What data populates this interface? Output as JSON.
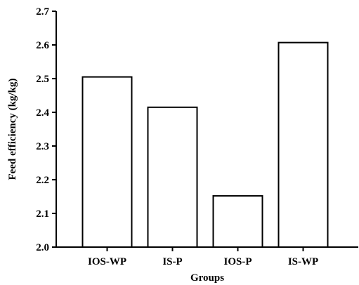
{
  "chart_data": {
    "type": "bar",
    "title": "",
    "xlabel": "Groups",
    "ylabel": "Feed efficiency (kg/kg)",
    "categories": [
      "IOS-WP",
      "IS-P",
      "IOS-P",
      "IS-WP"
    ],
    "values": [
      2.505,
      2.415,
      2.152,
      2.607
    ],
    "ylim": [
      2.0,
      2.7
    ],
    "yticks": [
      "2.0",
      "2.1",
      "2.2",
      "2.3",
      "2.4",
      "2.5",
      "2.6",
      "2.7"
    ],
    "grid": false,
    "legend": "none",
    "colors": {
      "bar_fill": "#ffffff",
      "bar_stroke": "#000000",
      "axis": "#000000"
    }
  }
}
